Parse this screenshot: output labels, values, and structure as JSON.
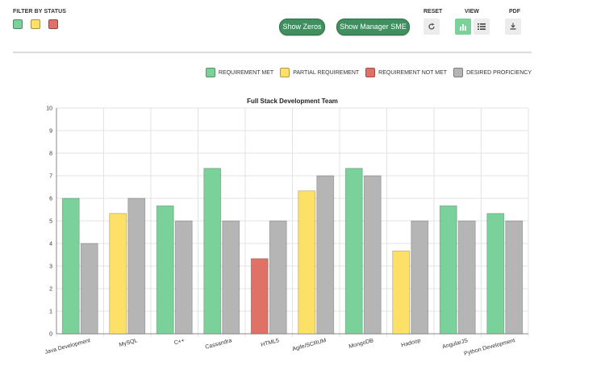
{
  "filter": {
    "title": "FILTER BY STATUS",
    "swatches": [
      "#7ad19a",
      "#fde068",
      "#e07167"
    ]
  },
  "buttons": {
    "show_zeros": "Show Zeros",
    "show_manager_sme": "Show Manager SME"
  },
  "controls": {
    "reset_label": "RESET",
    "reset_icon": "refresh-icon",
    "view_label": "VIEW",
    "view_chart_icon": "bar-chart-icon",
    "view_list_icon": "list-icon",
    "pdf_label": "PDF",
    "pdf_icon": "download-icon"
  },
  "legend": [
    {
      "label": "REQUIREMENT MET",
      "color": "#7ad19a"
    },
    {
      "label": "PARTIAL REQUIREMENT",
      "color": "#fde068"
    },
    {
      "label": "REQUIREMENT NOT MET",
      "color": "#e07167"
    },
    {
      "label": "DESIRED PROFICIENCY",
      "color": "#b5b5b5"
    }
  ],
  "chart_data": {
    "type": "bar",
    "title": "Full Stack Development Team",
    "categories": [
      "Java Development",
      "MySQL",
      "C++",
      "Cassandra",
      "HTML5",
      "Agile/SCRUM",
      "MongoDB",
      "Hadoop",
      "AngularJS",
      "Python Development"
    ],
    "series": [
      {
        "values": [
          6.0,
          5.33,
          5.67,
          7.33,
          3.33,
          6.33,
          7.33,
          3.67,
          5.67,
          5.33
        ],
        "colors": [
          "#7ad19a",
          "#fde068",
          "#7ad19a",
          "#7ad19a",
          "#e07167",
          "#fde068",
          "#7ad19a",
          "#fde068",
          "#7ad19a",
          "#7ad19a"
        ]
      },
      {
        "values": [
          4,
          6,
          5,
          5,
          5,
          7,
          7,
          5,
          5,
          5
        ],
        "colors": [
          "#b5b5b5",
          "#b5b5b5",
          "#b5b5b5",
          "#b5b5b5",
          "#b5b5b5",
          "#b5b5b5",
          "#b5b5b5",
          "#b5b5b5",
          "#b5b5b5",
          "#b5b5b5"
        ]
      }
    ],
    "ylim": [
      0,
      10
    ],
    "yticks": [
      "0",
      "1",
      "2",
      "3",
      "4",
      "5",
      "6",
      "7",
      "8",
      "9",
      "10"
    ],
    "grid": true
  }
}
